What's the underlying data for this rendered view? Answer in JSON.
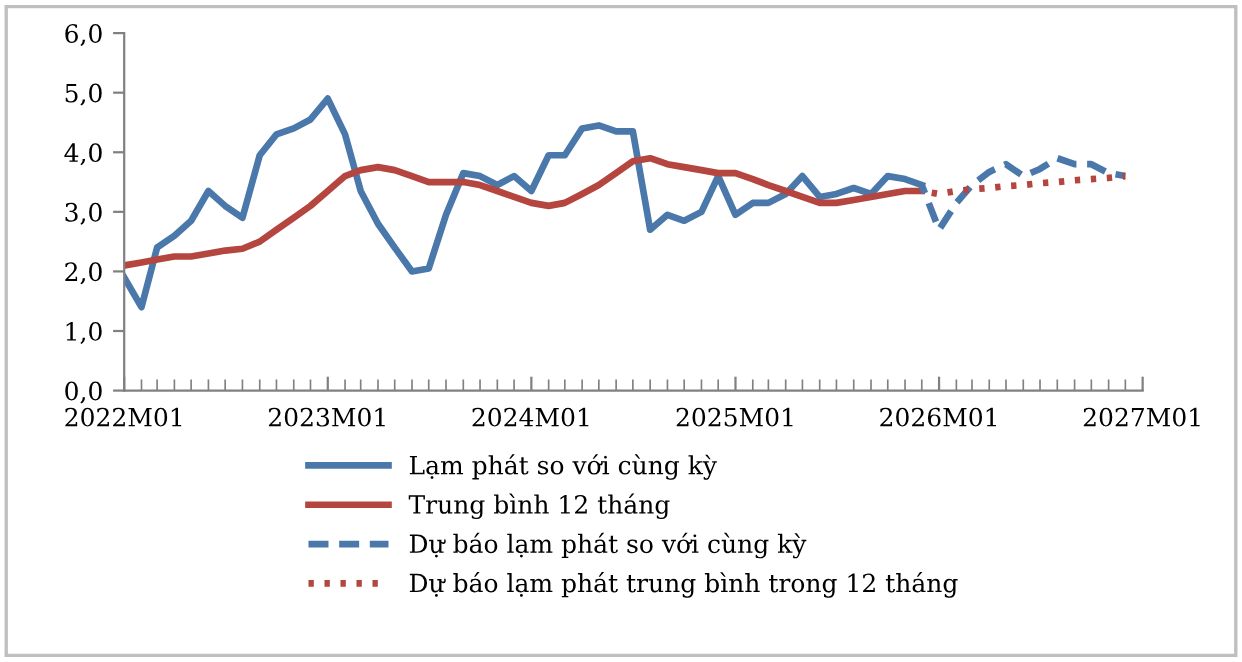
{
  "chart_data": {
    "type": "line",
    "legend": "bottom",
    "grid": false,
    "ylim": [
      0,
      6
    ],
    "yticks": [
      {
        "value": 0,
        "label": "0,0"
      },
      {
        "value": 1,
        "label": "1,0"
      },
      {
        "value": 2,
        "label": "2,0"
      },
      {
        "value": 3,
        "label": "3,0"
      },
      {
        "value": 4,
        "label": "4,0"
      },
      {
        "value": 5,
        "label": "5,0"
      },
      {
        "value": 6,
        "label": "6,0"
      }
    ],
    "xlim": [
      "2022-01",
      "2027-01"
    ],
    "xticks": [
      {
        "value": "2022-01",
        "label": "2022M01"
      },
      {
        "value": "2023-01",
        "label": "2023M01"
      },
      {
        "value": "2024-01",
        "label": "2024M01"
      },
      {
        "value": "2025-01",
        "label": "2025M01"
      },
      {
        "value": "2026-01",
        "label": "2026M01"
      },
      {
        "value": "2027-01",
        "label": "2027M01"
      }
    ],
    "series": [
      {
        "name": "Lạm phát so với cùng kỳ",
        "color": "#4a78aa",
        "line_style": "solid",
        "x": [
          "2022-01",
          "2022-02",
          "2022-03",
          "2022-04",
          "2022-05",
          "2022-06",
          "2022-07",
          "2022-08",
          "2022-09",
          "2022-10",
          "2022-11",
          "2022-12",
          "2023-01",
          "2023-02",
          "2023-03",
          "2023-04",
          "2023-05",
          "2023-06",
          "2023-07",
          "2023-08",
          "2023-09",
          "2023-10",
          "2023-11",
          "2023-12",
          "2024-01",
          "2024-02",
          "2024-03",
          "2024-04",
          "2024-05",
          "2024-06",
          "2024-07",
          "2024-08",
          "2024-09",
          "2024-10",
          "2024-11",
          "2024-12",
          "2025-01",
          "2025-02",
          "2025-03",
          "2025-04",
          "2025-05",
          "2025-06",
          "2025-07",
          "2025-08",
          "2025-09",
          "2025-10",
          "2025-11",
          "2025-12"
        ],
        "values": [
          1.9,
          1.4,
          2.4,
          2.6,
          2.85,
          3.35,
          3.1,
          2.9,
          3.95,
          4.3,
          4.4,
          4.55,
          4.9,
          4.3,
          3.35,
          2.8,
          2.4,
          2.0,
          2.05,
          2.95,
          3.65,
          3.6,
          3.45,
          3.6,
          3.35,
          3.95,
          3.95,
          4.4,
          4.45,
          4.35,
          4.35,
          2.7,
          2.95,
          2.85,
          3.0,
          3.6,
          2.95,
          3.15,
          3.15,
          3.3,
          3.6,
          3.25,
          3.3,
          3.4,
          3.3,
          3.6,
          3.55,
          3.45
        ]
      },
      {
        "name": "Trung bình 12 tháng",
        "color": "#b5453f",
        "line_style": "solid",
        "x": [
          "2022-01",
          "2022-02",
          "2022-03",
          "2022-04",
          "2022-05",
          "2022-06",
          "2022-07",
          "2022-08",
          "2022-09",
          "2022-10",
          "2022-11",
          "2022-12",
          "2023-01",
          "2023-02",
          "2023-03",
          "2023-04",
          "2023-05",
          "2023-06",
          "2023-07",
          "2023-08",
          "2023-09",
          "2023-10",
          "2023-11",
          "2023-12",
          "2024-01",
          "2024-02",
          "2024-03",
          "2024-04",
          "2024-05",
          "2024-06",
          "2024-07",
          "2024-08",
          "2024-09",
          "2024-10",
          "2024-11",
          "2024-12",
          "2025-01",
          "2025-02",
          "2025-03",
          "2025-04",
          "2025-05",
          "2025-06",
          "2025-07",
          "2025-08",
          "2025-09",
          "2025-10",
          "2025-11",
          "2025-12"
        ],
        "values": [
          2.1,
          2.15,
          2.2,
          2.25,
          2.25,
          2.3,
          2.35,
          2.38,
          2.5,
          2.7,
          2.9,
          3.1,
          3.35,
          3.6,
          3.7,
          3.75,
          3.7,
          3.6,
          3.5,
          3.5,
          3.5,
          3.45,
          3.35,
          3.25,
          3.15,
          3.1,
          3.15,
          3.3,
          3.45,
          3.65,
          3.85,
          3.9,
          3.8,
          3.75,
          3.7,
          3.65,
          3.65,
          3.55,
          3.45,
          3.35,
          3.25,
          3.15,
          3.15,
          3.2,
          3.25,
          3.3,
          3.35,
          3.35
        ]
      },
      {
        "name": "Dự báo lạm phát so với cùng kỳ",
        "color": "#4a78aa",
        "line_style": "dashed",
        "x": [
          "2025-12",
          "2026-01",
          "2026-02",
          "2026-03",
          "2026-04",
          "2026-05",
          "2026-06",
          "2026-07",
          "2026-08",
          "2026-09",
          "2026-10",
          "2026-11",
          "2026-12"
        ],
        "values": [
          3.45,
          2.7,
          3.15,
          3.45,
          3.67,
          3.8,
          3.6,
          3.72,
          3.9,
          3.8,
          3.8,
          3.65,
          3.6
        ]
      },
      {
        "name": "Dự báo lạm phát trung bình trong 12 tháng",
        "color": "#b5453f",
        "line_style": "dotted",
        "x": [
          "2025-12",
          "2026-01",
          "2026-02",
          "2026-03",
          "2026-04",
          "2026-05",
          "2026-06",
          "2026-07",
          "2026-08",
          "2026-09",
          "2026-10",
          "2026-11",
          "2026-12"
        ],
        "values": [
          3.35,
          3.3,
          3.35,
          3.38,
          3.4,
          3.43,
          3.45,
          3.48,
          3.5,
          3.53,
          3.55,
          3.57,
          3.6
        ]
      }
    ]
  }
}
